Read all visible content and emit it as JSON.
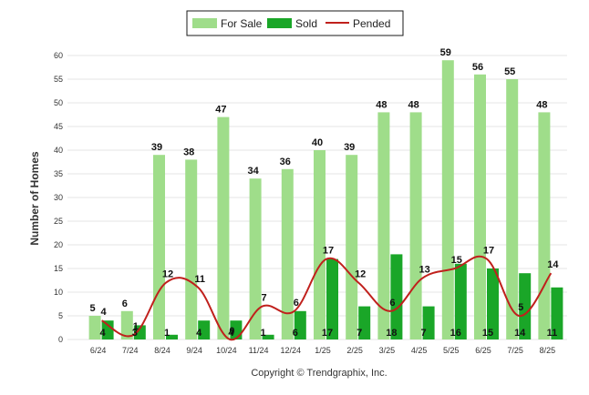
{
  "chart_data": {
    "type": "bar",
    "categories": [
      "6/24",
      "7/24",
      "8/24",
      "9/24",
      "10/24",
      "11/24",
      "12/24",
      "1/25",
      "2/25",
      "3/25",
      "4/25",
      "5/25",
      "6/25",
      "7/25",
      "8/25"
    ],
    "series": [
      {
        "name": "For Sale",
        "type": "bar",
        "color": "#9fdd8a",
        "values": [
          5,
          6,
          39,
          38,
          47,
          34,
          36,
          40,
          39,
          48,
          48,
          59,
          56,
          55,
          48
        ]
      },
      {
        "name": "Sold",
        "type": "bar",
        "color": "#1aa628",
        "values": [
          4,
          3,
          1,
          4,
          4,
          1,
          6,
          17,
          7,
          18,
          7,
          16,
          15,
          14,
          11
        ]
      },
      {
        "name": "Pended",
        "type": "line",
        "color": "#c0201c",
        "values": [
          4,
          1,
          12,
          11,
          0,
          7,
          6,
          17,
          12,
          6,
          13,
          15,
          17,
          5,
          14
        ]
      }
    ],
    "ylabel": "Number of Homes",
    "xlabel": "",
    "ylim": [
      0,
      60
    ],
    "yticks": [
      0,
      5,
      10,
      15,
      20,
      25,
      30,
      35,
      40,
      45,
      50,
      55,
      60
    ],
    "grid": true,
    "legend": "top-center",
    "copyright": "Copyright © Trendgraphix, Inc."
  }
}
